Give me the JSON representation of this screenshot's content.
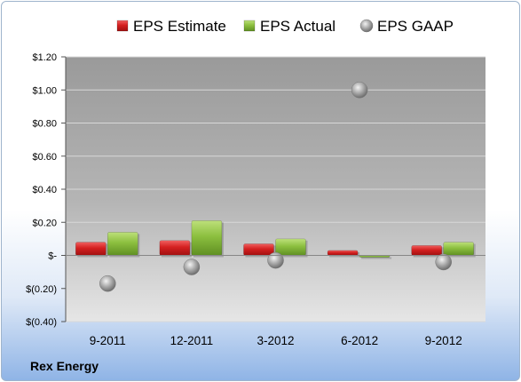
{
  "company": "Rex Energy",
  "chart_data": {
    "type": "bar",
    "categories": [
      "9-2011",
      "12-2011",
      "3-2012",
      "6-2012",
      "9-2012"
    ],
    "series": [
      {
        "name": "EPS Estimate",
        "kind": "bar",
        "color": "#cc1f1f",
        "values": [
          0.08,
          0.09,
          0.07,
          0.03,
          0.06
        ]
      },
      {
        "name": "EPS Actual",
        "kind": "bar",
        "color": "#8cbf3f",
        "values": [
          0.14,
          0.21,
          0.1,
          -0.01,
          0.08
        ]
      },
      {
        "name": "EPS GAAP",
        "kind": "scatter",
        "color": "#9a9a9a",
        "values": [
          -0.17,
          -0.07,
          -0.03,
          1.0,
          -0.04
        ]
      }
    ],
    "yticks": [
      1.2,
      1.0,
      0.8,
      0.6,
      0.4,
      0.2,
      0,
      -0.2,
      -0.4
    ],
    "ytick_labels": [
      "$1.20",
      "$1.00",
      "$0.80",
      "$0.60",
      "$0.40",
      "$0.20",
      "$-",
      "$(0.20)",
      "$(0.40)"
    ],
    "ylim": [
      -0.4,
      1.2
    ],
    "legend_position": "top",
    "grid": true
  }
}
